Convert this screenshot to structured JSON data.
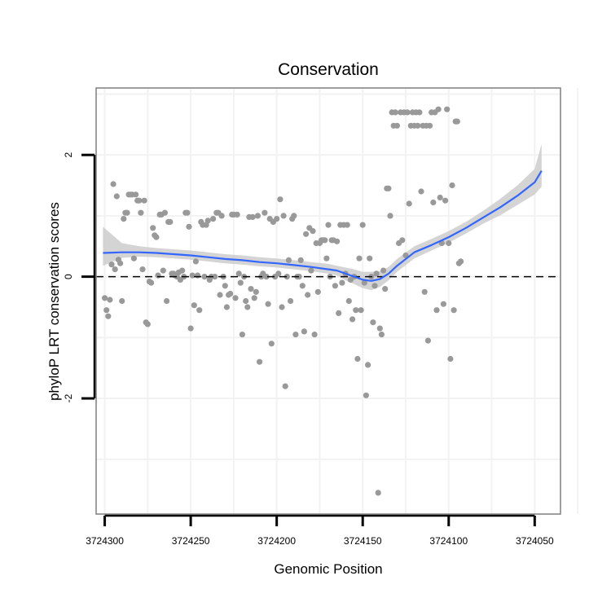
{
  "chart_data": {
    "type": "scatter",
    "title": "Conservation",
    "xlabel": "Genomic Position",
    "ylabel": "phyloP LRT conservation scores",
    "xlim": [
      3724305,
      3724035
    ],
    "ylim": [
      -3.9,
      3.1
    ],
    "x_reversed": true,
    "xticks": [
      3724300,
      3724250,
      3724200,
      3724150,
      3724100,
      3724050
    ],
    "xtick_labels": [
      "3724300",
      "3724250",
      "3724200",
      "3724150",
      "3724100",
      "3724050"
    ],
    "yticks": [
      2,
      0,
      -2
    ],
    "ytick_labels": [
      "2",
      "0",
      "-2"
    ],
    "grid": true,
    "colors": {
      "points": "#999999",
      "smooth_line": "#3366ff",
      "ribbon": "#cccccc",
      "reference_line": "#000000",
      "frame": "#7f7f7f",
      "grid": "#f2f2f2"
    },
    "reference_line": {
      "y": 0,
      "style": "dashed"
    },
    "smooth": {
      "x": [
        3724301,
        3724290,
        3724280,
        3724270,
        3724260,
        3724250,
        3724240,
        3724230,
        3724220,
        3724210,
        3724200,
        3724190,
        3724180,
        3724170,
        3724165,
        3724160,
        3724155,
        3724150,
        3724145,
        3724140,
        3724135,
        3724130,
        3724120,
        3724110,
        3724100,
        3724090,
        3724080,
        3724070,
        3724060,
        3724050,
        3724046
      ],
      "y": [
        0.39,
        0.4,
        0.4,
        0.39,
        0.37,
        0.35,
        0.32,
        0.29,
        0.27,
        0.24,
        0.22,
        0.19,
        0.16,
        0.12,
        0.1,
        0.05,
        0.0,
        -0.05,
        -0.07,
        -0.04,
        0.05,
        0.18,
        0.4,
        0.52,
        0.65,
        0.8,
        0.97,
        1.14,
        1.33,
        1.55,
        1.74
      ],
      "lower": [
        0.18,
        0.31,
        0.33,
        0.32,
        0.3,
        0.28,
        0.25,
        0.22,
        0.2,
        0.17,
        0.15,
        0.12,
        0.09,
        0.05,
        0.02,
        -0.06,
        -0.12,
        -0.19,
        -0.22,
        -0.17,
        -0.06,
        0.08,
        0.3,
        0.43,
        0.56,
        0.71,
        0.87,
        1.01,
        1.18,
        1.35,
        1.48
      ],
      "upper": [
        0.82,
        0.55,
        0.5,
        0.47,
        0.45,
        0.43,
        0.4,
        0.37,
        0.35,
        0.32,
        0.3,
        0.27,
        0.24,
        0.21,
        0.18,
        0.15,
        0.12,
        0.08,
        0.08,
        0.09,
        0.16,
        0.29,
        0.5,
        0.62,
        0.75,
        0.9,
        1.08,
        1.28,
        1.5,
        1.77,
        2.18
      ]
    },
    "points": [
      [
        3724300,
        -0.35
      ],
      [
        3724299,
        -0.55
      ],
      [
        3724298,
        -0.65
      ],
      [
        3724297,
        -0.38
      ],
      [
        3724296,
        0.2
      ],
      [
        3724295,
        1.52
      ],
      [
        3724294,
        0.12
      ],
      [
        3724293,
        1.32
      ],
      [
        3724292,
        0.28
      ],
      [
        3724291,
        0.22
      ],
      [
        3724290,
        -0.4
      ],
      [
        3724289,
        0.95
      ],
      [
        3724288,
        1.05
      ],
      [
        3724287,
        1.05
      ],
      [
        3724286,
        1.35
      ],
      [
        3724285,
        1.35
      ],
      [
        3724284,
        1.35
      ],
      [
        3724283,
        0.3
      ],
      [
        3724282,
        1.35
      ],
      [
        3724281,
        1.25
      ],
      [
        3724280,
        1.25
      ],
      [
        3724279,
        1.05
      ],
      [
        3724278,
        0.12
      ],
      [
        3724277,
        1.25
      ],
      [
        3724276,
        -0.75
      ],
      [
        3724275,
        -0.78
      ],
      [
        3724274,
        -0.08
      ],
      [
        3724273,
        -0.1
      ],
      [
        3724272,
        0.8
      ],
      [
        3724271,
        0.68
      ],
      [
        3724270,
        0.65
      ],
      [
        3724269,
        0.02
      ],
      [
        3724268,
        1.02
      ],
      [
        3724267,
        1.02
      ],
      [
        3724266,
        0.1
      ],
      [
        3724265,
        1.05
      ],
      [
        3724264,
        -0.4
      ],
      [
        3724263,
        0.9
      ],
      [
        3724262,
        0.9
      ],
      [
        3724261,
        0.05
      ],
      [
        3724260,
        0.05
      ],
      [
        3724259,
        0.02
      ],
      [
        3724258,
        0.0
      ],
      [
        3724257,
        0.07
      ],
      [
        3724256,
        -0.05
      ],
      [
        3724255,
        0.1
      ],
      [
        3724254,
        0.0
      ],
      [
        3724253,
        1.05
      ],
      [
        3724252,
        1.05
      ],
      [
        3724251,
        0.82
      ],
      [
        3724250,
        -0.85
      ],
      [
        3724249,
        0.02
      ],
      [
        3724248,
        -0.47
      ],
      [
        3724247,
        0.25
      ],
      [
        3724246,
        0.02
      ],
      [
        3724245,
        -0.55
      ],
      [
        3724244,
        0.9
      ],
      [
        3724243,
        0.85
      ],
      [
        3724242,
        0.0
      ],
      [
        3724241,
        0.85
      ],
      [
        3724240,
        0.92
      ],
      [
        3724239,
        -0.05
      ],
      [
        3724238,
        0.0
      ],
      [
        3724237,
        0.95
      ],
      [
        3724236,
        0.0
      ],
      [
        3724235,
        1.05
      ],
      [
        3724234,
        1.05
      ],
      [
        3724233,
        -0.3
      ],
      [
        3724232,
        1.0
      ],
      [
        3724231,
        0.0
      ],
      [
        3724230,
        -0.15
      ],
      [
        3724229,
        -0.5
      ],
      [
        3724228,
        -0.3
      ],
      [
        3724227,
        -0.28
      ],
      [
        3724226,
        1.02
      ],
      [
        3724225,
        1.02
      ],
      [
        3724224,
        -0.35
      ],
      [
        3724223,
        1.02
      ],
      [
        3724222,
        0.05
      ],
      [
        3724221,
        -0.1
      ],
      [
        3724220,
        -0.95
      ],
      [
        3724219,
        0.0
      ],
      [
        3724218,
        -0.4
      ],
      [
        3724217,
        -0.5
      ],
      [
        3724216,
        0.98
      ],
      [
        3724215,
        -0.2
      ],
      [
        3724214,
        0.98
      ],
      [
        3724213,
        -0.35
      ],
      [
        3724212,
        -0.25
      ],
      [
        3724211,
        1.0
      ],
      [
        3724210,
        -1.4
      ],
      [
        3724209,
        0.0
      ],
      [
        3724208,
        0.05
      ],
      [
        3724207,
        1.05
      ],
      [
        3724206,
        0.0
      ],
      [
        3724205,
        -0.45
      ],
      [
        3724204,
        0.95
      ],
      [
        3724203,
        -1.1
      ],
      [
        3724202,
        0.9
      ],
      [
        3724201,
        0.0
      ],
      [
        3724200,
        0.95
      ],
      [
        3724199,
        0.05
      ],
      [
        3724198,
        1.27
      ],
      [
        3724197,
        -0.5
      ],
      [
        3724196,
        1.0
      ],
      [
        3724195,
        -1.8
      ],
      [
        3724194,
        0.0
      ],
      [
        3724193,
        0.27
      ],
      [
        3724192,
        -0.4
      ],
      [
        3724191,
        0.95
      ],
      [
        3724190,
        1.0
      ],
      [
        3724189,
        -0.95
      ],
      [
        3724188,
        0.0
      ],
      [
        3724187,
        0.0
      ],
      [
        3724186,
        0.27
      ],
      [
        3724185,
        -0.15
      ],
      [
        3724184,
        -0.9
      ],
      [
        3724183,
        0.7
      ],
      [
        3724182,
        -0.3
      ],
      [
        3724181,
        0.8
      ],
      [
        3724180,
        0.1
      ],
      [
        3724179,
        0.75
      ],
      [
        3724178,
        -0.95
      ],
      [
        3724177,
        0.55
      ],
      [
        3724176,
        -0.25
      ],
      [
        3724175,
        0.55
      ],
      [
        3724174,
        0.6
      ],
      [
        3724173,
        0.6
      ],
      [
        3724172,
        0.6
      ],
      [
        3724171,
        0.3
      ],
      [
        3724170,
        0.85
      ],
      [
        3724169,
        0.0
      ],
      [
        3724168,
        0.6
      ],
      [
        3724167,
        0.6
      ],
      [
        3724166,
        -0.15
      ],
      [
        3724165,
        0.58
      ],
      [
        3724164,
        -0.6
      ],
      [
        3724163,
        0.85
      ],
      [
        3724162,
        -0.1
      ],
      [
        3724161,
        0.85
      ],
      [
        3724160,
        0.05
      ],
      [
        3724159,
        0.85
      ],
      [
        3724158,
        -0.4
      ],
      [
        3724157,
        -0.05
      ],
      [
        3724156,
        -0.7
      ],
      [
        3724155,
        0.0
      ],
      [
        3724154,
        -0.55
      ],
      [
        3724153,
        -1.35
      ],
      [
        3724152,
        0.3
      ],
      [
        3724151,
        -0.55
      ],
      [
        3724150,
        0.85
      ],
      [
        3724149,
        -0.1
      ],
      [
        3724148,
        -1.95
      ],
      [
        3724147,
        -1.45
      ],
      [
        3724146,
        0.3
      ],
      [
        3724145,
        0.0
      ],
      [
        3724144,
        -0.75
      ],
      [
        3724143,
        -0.15
      ],
      [
        3724142,
        0.05
      ],
      [
        3724141,
        -3.55
      ],
      [
        3724140,
        -0.85
      ],
      [
        3724139,
        -0.95
      ],
      [
        3724138,
        0.1
      ],
      [
        3724137,
        -0.2
      ],
      [
        3724136,
        1.45
      ],
      [
        3724135,
        1.45
      ],
      [
        3724134,
        1.0
      ],
      [
        3724133,
        2.7
      ],
      [
        3724132,
        2.48
      ],
      [
        3724131,
        2.7
      ],
      [
        3724130,
        2.48
      ],
      [
        3724129,
        0.55
      ],
      [
        3724128,
        2.7
      ],
      [
        3724127,
        0.6
      ],
      [
        3724126,
        2.7
      ],
      [
        3724125,
        0.35
      ],
      [
        3724124,
        2.7
      ],
      [
        3724123,
        1.2
      ],
      [
        3724122,
        2.48
      ],
      [
        3724121,
        2.7
      ],
      [
        3724120,
        2.48
      ],
      [
        3724119,
        2.7
      ],
      [
        3724118,
        2.48
      ],
      [
        3724117,
        2.7
      ],
      [
        3724116,
        1.4
      ],
      [
        3724115,
        2.48
      ],
      [
        3724114,
        -0.25
      ],
      [
        3724113,
        2.48
      ],
      [
        3724112,
        -1.05
      ],
      [
        3724111,
        2.48
      ],
      [
        3724110,
        2.7
      ],
      [
        3724109,
        1.22
      ],
      [
        3724108,
        2.7
      ],
      [
        3724107,
        -0.55
      ],
      [
        3724106,
        2.75
      ],
      [
        3724105,
        1.3
      ],
      [
        3724104,
        0.55
      ],
      [
        3724103,
        -0.45
      ],
      [
        3724102,
        1.25
      ],
      [
        3724101,
        2.75
      ],
      [
        3724100,
        0.55
      ],
      [
        3724099,
        -1.35
      ],
      [
        3724098,
        1.5
      ],
      [
        3724097,
        -0.55
      ],
      [
        3724096,
        2.55
      ],
      [
        3724095,
        2.55
      ],
      [
        3724094,
        0.22
      ],
      [
        3724093,
        0.25
      ]
    ]
  }
}
